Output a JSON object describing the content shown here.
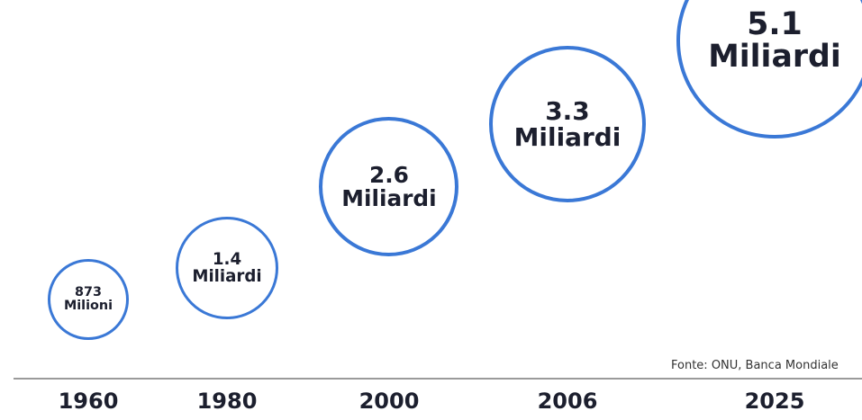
{
  "chart_data": {
    "type": "bubble",
    "categories": [
      "1960",
      "1980",
      "2000",
      "2006",
      "2025"
    ],
    "values": [
      873,
      1400,
      2600,
      3300,
      5100
    ],
    "value_labels": [
      "873 Milioni",
      "1.4 Miliardi",
      "2.6 Miliardi",
      "3.3 Miliardi",
      "5.1 Miliardi"
    ],
    "color": "#3a78d6",
    "source": "Fonte: ONU, Banca Mondiale"
  }
}
